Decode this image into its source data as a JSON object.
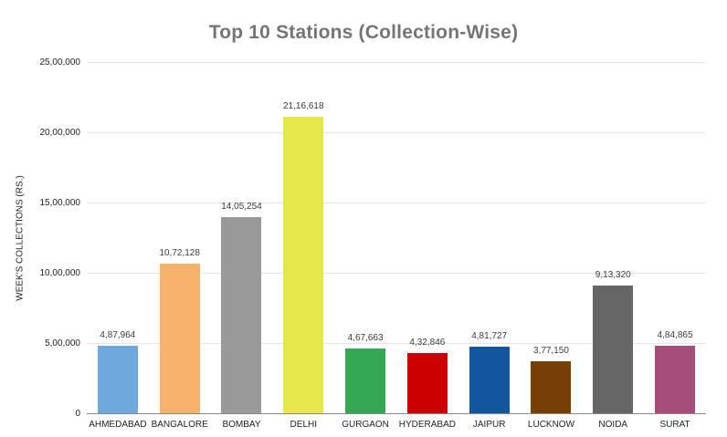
{
  "title": "Top 10 Stations (Collection-Wise)",
  "y_axis": {
    "title": "WEEK'S COLLECTIONS (RS.)",
    "tick_labels": [
      "0",
      "5,00,000",
      "10,00,000",
      "15,00,000",
      "20,00,000",
      "25,00,000"
    ],
    "tick_values": [
      0,
      500000,
      1000000,
      1500000,
      2000000,
      2500000
    ]
  },
  "chart_data": {
    "type": "bar",
    "title": "Top 10 Stations (Collection-Wise)",
    "xlabel": "",
    "ylabel": "WEEK'S COLLECTIONS (RS.)",
    "ylim": [
      0,
      2500000
    ],
    "grid": true,
    "legend": "none",
    "categories": [
      "AHMEDABAD",
      "BANGALORE",
      "BOMBAY",
      "DELHI",
      "GURGAON",
      "HYDERABAD",
      "JAIPUR",
      "LUCKNOW",
      "NOIDA",
      "SURAT"
    ],
    "values": [
      487964,
      1072128,
      1405254,
      2116618,
      467663,
      432846,
      481727,
      377150,
      913320,
      484865
    ],
    "value_labels": [
      "4,87,964",
      "10,72,128",
      "14,05,254",
      "21,16,618",
      "4,67,663",
      "4,32,846",
      "4,81,727",
      "3,77,150",
      "9,13,320",
      "4,84,865"
    ],
    "bar_colors": [
      "#6FA8DC",
      "#F6B26B",
      "#999999",
      "#E7E64A",
      "#34A853",
      "#CC0000",
      "#12569F",
      "#783F04",
      "#666666",
      "#A64D79"
    ]
  }
}
